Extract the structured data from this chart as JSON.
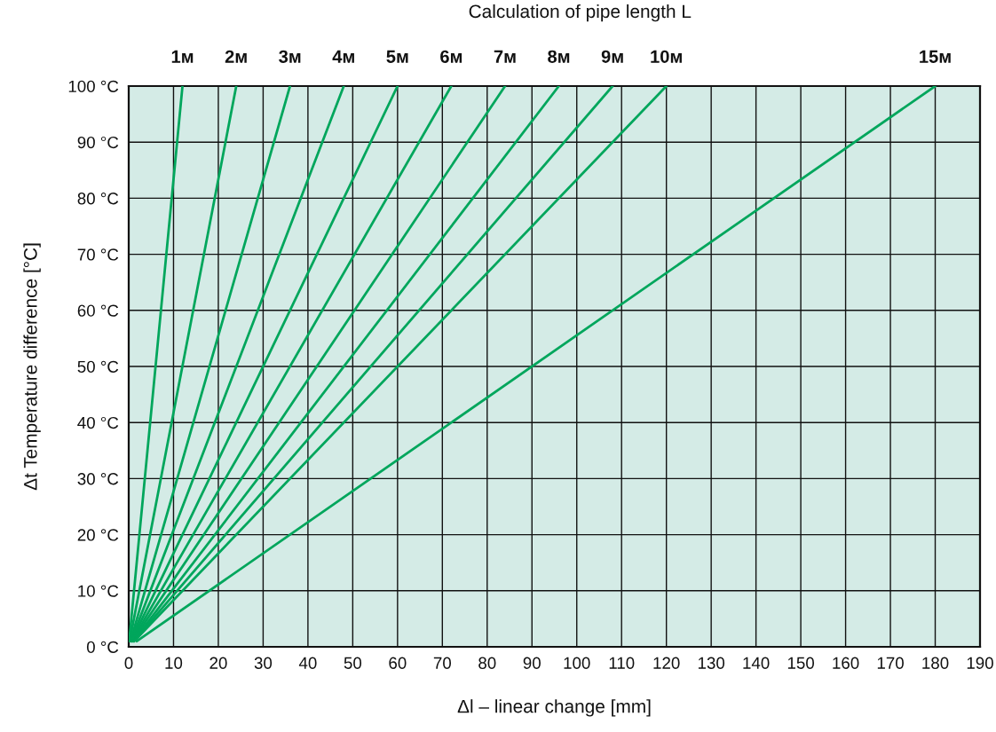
{
  "chart_data": {
    "type": "line",
    "title": "Calculation of pipe length L",
    "xlabel": "Δl – linear change [mm]",
    "ylabel": "Δt Temperature difference [°C]",
    "xlim": [
      0,
      190
    ],
    "xticks": [
      0,
      10,
      20,
      30,
      40,
      50,
      60,
      70,
      80,
      90,
      100,
      110,
      120,
      130,
      140,
      150,
      160,
      170,
      180,
      190
    ],
    "ylim": [
      0,
      100
    ],
    "yticks": [
      {
        "value": 0,
        "label": "0 °C"
      },
      {
        "value": 10,
        "label": "10 °C"
      },
      {
        "value": 20,
        "label": "20 °C"
      },
      {
        "value": 30,
        "label": "30 °C"
      },
      {
        "value": 40,
        "label": "40 °C"
      },
      {
        "value": 50,
        "label": "50 °C"
      },
      {
        "value": 60,
        "label": "60 °C"
      },
      {
        "value": 70,
        "label": "70 °C"
      },
      {
        "value": 80,
        "label": "80 °C"
      },
      {
        "value": 90,
        "label": "90 °C"
      },
      {
        "value": 100,
        "label": "100 °C"
      }
    ],
    "grid": true,
    "legend": false,
    "marker": "none",
    "line_style": "solid",
    "series": [
      {
        "name": "1м",
        "color": "#00a65c",
        "x": [
          0.1,
          12
        ],
        "values": [
          1,
          100
        ]
      },
      {
        "name": "2м",
        "color": "#00a65c",
        "x": [
          0.2,
          24
        ],
        "values": [
          1,
          100
        ]
      },
      {
        "name": "3м",
        "color": "#00a65c",
        "x": [
          0.4,
          36
        ],
        "values": [
          1,
          100
        ]
      },
      {
        "name": "4м",
        "color": "#00a65c",
        "x": [
          0.5,
          48
        ],
        "values": [
          1,
          100
        ]
      },
      {
        "name": "5м",
        "color": "#00a65c",
        "x": [
          0.6,
          60
        ],
        "values": [
          1,
          100
        ]
      },
      {
        "name": "6м",
        "color": "#00a65c",
        "x": [
          0.7,
          72
        ],
        "values": [
          1,
          100
        ]
      },
      {
        "name": "7м",
        "color": "#00a65c",
        "x": [
          0.8,
          84
        ],
        "values": [
          1,
          100
        ]
      },
      {
        "name": "8м",
        "color": "#00a65c",
        "x": [
          1.0,
          96
        ],
        "values": [
          1,
          100
        ]
      },
      {
        "name": "9м",
        "color": "#00a65c",
        "x": [
          1.1,
          108
        ],
        "values": [
          1,
          100
        ]
      },
      {
        "name": "10м",
        "color": "#00a65c",
        "x": [
          1.2,
          120
        ],
        "values": [
          1,
          100
        ]
      },
      {
        "name": "15м",
        "color": "#00a65c",
        "x": [
          1.8,
          180
        ],
        "values": [
          1,
          100
        ]
      }
    ]
  }
}
